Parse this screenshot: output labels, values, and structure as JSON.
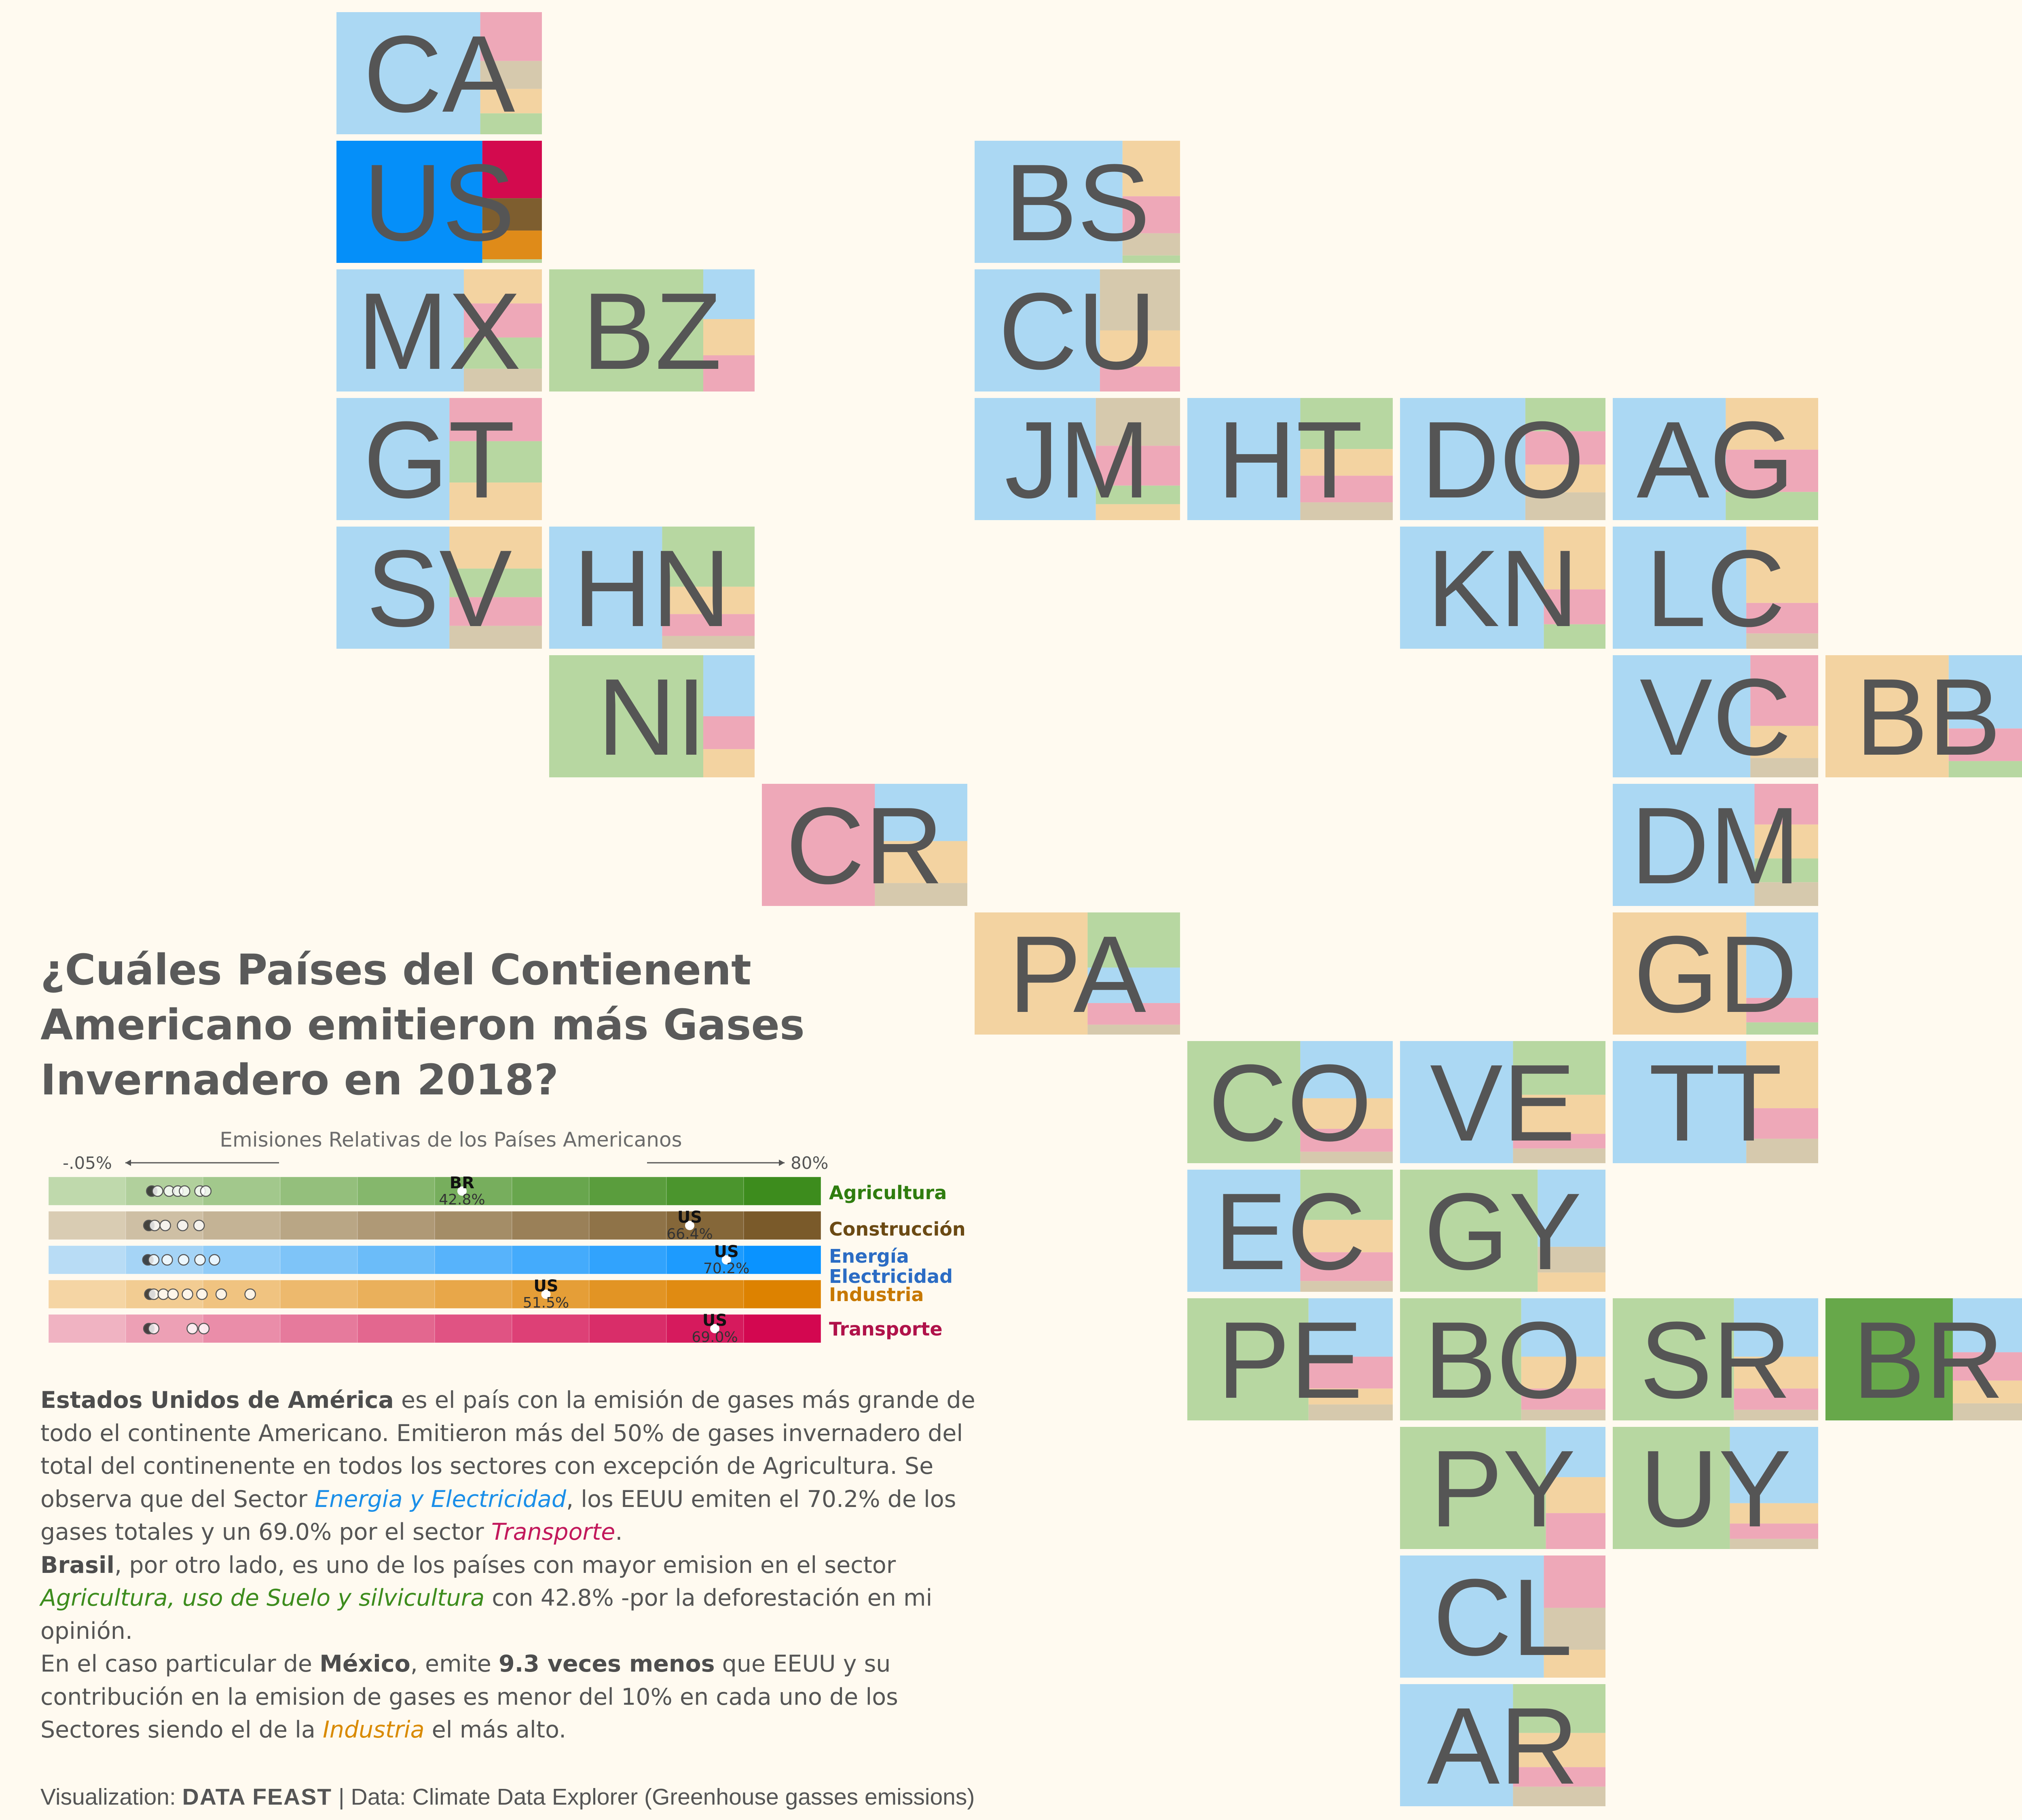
{
  "title": "¿Cuáles Países del Contienent Americano emitieron más Gases Invernadero en 2018?",
  "colors": {
    "agricultura": [
      "#bfd9ac",
      "#3d8c1d"
    ],
    "construccion": [
      "#d9ccb3",
      "#7a5a2a"
    ],
    "energia": [
      "#b8dcf5",
      "#0a93ff"
    ],
    "industria": [
      "#f5d5a4",
      "#dd8200"
    ],
    "transporte": [
      "#f0b3c2",
      "#d30750"
    ],
    "tile": {
      "agricultura": "#b7d7a1",
      "construccion": "#d6c9ad",
      "energia": "#abd8f3",
      "industria": "#f3d3a1",
      "transporte": "#eea8b8",
      "us_energia": "#058ff9",
      "us_transporte": "#d30a4e",
      "us_construccion": "#7e5e2f",
      "us_industria": "#df8b19",
      "br_agricultura": "#67a84a"
    }
  },
  "tiles": [
    {
      "code": "CA",
      "shares": {
        "energia": 0.65,
        "transporte": 0.14,
        "construccion": 0.08,
        "industria": 0.07,
        "agricultura": 0.06
      }
    },
    {
      "code": "US",
      "shares": {
        "energia": 0.66,
        "transporte": 0.16,
        "construccion": 0.09,
        "industria": 0.08,
        "agricultura": 0.01
      },
      "strong": [
        "energia",
        "transporte",
        "construccion",
        "industria"
      ]
    },
    {
      "code": "MX",
      "shares": {
        "energia": 0.57,
        "industria": 0.12,
        "transporte": 0.12,
        "agricultura": 0.11,
        "construccion": 0.08
      }
    },
    {
      "code": "BZ",
      "shares": {
        "agricultura": 0.73,
        "energia": 0.11,
        "industria": 0.08,
        "transporte": 0.08
      }
    },
    {
      "code": "GT",
      "shares": {
        "energia": 0.35,
        "agricultura": 0.22,
        "industria": 0.2,
        "transporte": 0.23
      }
    },
    {
      "code": "SV",
      "shares": {
        "energia": 0.36,
        "industria": 0.22,
        "agricultura": 0.15,
        "transporte": 0.15,
        "construccion": 0.12
      }
    },
    {
      "code": "HN",
      "shares": {
        "energia": 0.33,
        "agricultura": 0.33,
        "industria": 0.15,
        "transporte": 0.12,
        "construccion": 0.07
      }
    },
    {
      "code": "NI",
      "shares": {
        "agricultura": 0.74,
        "energia": 0.13,
        "industria": 0.06,
        "transporte": 0.07
      }
    },
    {
      "code": "CR",
      "shares": {
        "energia": 0.3,
        "transporte": 0.36,
        "industria": 0.22,
        "construccion": 0.12
      }
    },
    {
      "code": "BS",
      "shares": {
        "energia": 0.67,
        "industria": 0.15,
        "transporte": 0.1,
        "construccion": 0.06,
        "agricultura": 0.02
      }
    },
    {
      "code": "CU",
      "shares": {
        "energia": 0.56,
        "industria": 0.13,
        "construccion": 0.22,
        "transporte": 0.09
      }
    },
    {
      "code": "JM",
      "shares": {
        "energia": 0.54,
        "construccion": 0.18,
        "transporte": 0.15,
        "agricultura": 0.07,
        "industria": 0.06
      }
    },
    {
      "code": "HT",
      "shares": {
        "energia": 0.45,
        "agricultura": 0.23,
        "industria": 0.12,
        "transporte": 0.12,
        "construccion": 0.08
      }
    },
    {
      "code": "DO",
      "shares": {
        "energia": 0.56,
        "industria": 0.1,
        "agricultura": 0.12,
        "transporte": 0.12,
        "construccion": 0.1
      }
    },
    {
      "code": "AG",
      "shares": {
        "energia": 0.48,
        "industria": 0.22,
        "transporte": 0.18,
        "agricultura": 0.12
      }
    },
    {
      "code": "KN",
      "shares": {
        "energia": 0.65,
        "industria": 0.18,
        "transporte": 0.1,
        "agricultura": 0.07
      }
    },
    {
      "code": "LC",
      "shares": {
        "energia": 0.6,
        "industria": 0.25,
        "transporte": 0.1,
        "construccion": 0.05
      }
    },
    {
      "code": "VC",
      "shares": {
        "energia": 0.62,
        "transporte": 0.22,
        "industria": 0.1,
        "construccion": 0.06
      }
    },
    {
      "code": "BB",
      "shares": {
        "industria": 0.55,
        "energia": 0.27,
        "transporte": 0.12,
        "agricultura": 0.06
      }
    },
    {
      "code": "DM",
      "shares": {
        "energia": 0.64,
        "transporte": 0.12,
        "industria": 0.1,
        "agricultura": 0.07,
        "construccion": 0.07
      }
    },
    {
      "code": "PA",
      "shares": {
        "industria": 0.38,
        "agricultura": 0.28,
        "energia": 0.18,
        "transporte": 0.11,
        "construccion": 0.05
      }
    },
    {
      "code": "GD",
      "shares": {
        "industria": 0.6,
        "energia": 0.28,
        "transporte": 0.08,
        "agricultura": 0.04
      }
    },
    {
      "code": "CO",
      "shares": {
        "agricultura": 0.36,
        "energia": 0.3,
        "industria": 0.16,
        "transporte": 0.12,
        "construccion": 0.06
      }
    },
    {
      "code": "VE",
      "shares": {
        "energia": 0.5,
        "agricultura": 0.22,
        "industria": 0.16,
        "construccion": 0.06,
        "transporte": 0.06
      }
    },
    {
      "code": "TT",
      "shares": {
        "energia": 0.6,
        "industria": 0.22,
        "transporte": 0.1,
        "construccion": 0.08
      }
    },
    {
      "code": "EC",
      "shares": {
        "energia": 0.32,
        "agricultura": 0.28,
        "industria": 0.18,
        "transporte": 0.16,
        "construccion": 0.06
      }
    },
    {
      "code": "GY",
      "shares": {
        "agricultura": 0.62,
        "energia": 0.24,
        "construccion": 0.08,
        "industria": 0.06
      }
    },
    {
      "code": "PE",
      "shares": {
        "agricultura": 0.54,
        "energia": 0.22,
        "transporte": 0.12,
        "construccion": 0.06,
        "industria": 0.06
      }
    },
    {
      "code": "BO",
      "shares": {
        "agricultura": 0.54,
        "energia": 0.22,
        "industria": 0.12,
        "transporte": 0.08,
        "construccion": 0.04
      }
    },
    {
      "code": "SR",
      "shares": {
        "agricultura": 0.54,
        "energia": 0.22,
        "industria": 0.12,
        "transporte": 0.08,
        "construccion": 0.04
      }
    },
    {
      "code": "BR",
      "shares": {
        "agricultura": 0.57,
        "energia": 0.19,
        "transporte": 0.1,
        "industria": 0.08,
        "construccion": 0.06
      },
      "strong": [
        "agricultura"
      ]
    },
    {
      "code": "PY",
      "shares": {
        "agricultura": 0.66,
        "industria": 0.1,
        "energia": 0.14,
        "transporte": 0.1
      }
    },
    {
      "code": "UY",
      "shares": {
        "agricultura": 0.52,
        "energia": 0.3,
        "industria": 0.08,
        "transporte": 0.06,
        "construccion": 0.04
      }
    },
    {
      "code": "CL",
      "shares": {
        "energia": 0.65,
        "transporte": 0.15,
        "construccion": 0.12,
        "industria": 0.08
      }
    },
    {
      "code": "AR",
      "shares": {
        "energia": 0.5,
        "agricultura": 0.2,
        "industria": 0.14,
        "construccion": 0.08,
        "transporte": 0.08
      }
    }
  ],
  "chart_data": {
    "type": "bar",
    "title": "Emisiones Relativas de los Países Americanos",
    "x_range_labels": [
      "-.05%",
      "80%"
    ],
    "xlim": [
      -0.05,
      80
    ],
    "categories": [
      "Agricultura",
      "Construcción",
      "Energía Electricidad",
      "Industria",
      "Transporte"
    ],
    "series": [
      {
        "name": "Agricultura",
        "max_country": "BR",
        "max_value": 42.8,
        "max_label": "42.8%",
        "dots": [
          0.8,
          1.4,
          2.6,
          3.5,
          4.2,
          5.8,
          6.4
        ]
      },
      {
        "name": "Construcción",
        "max_country": "US",
        "max_value": 66.4,
        "max_label": "66.4%",
        "dots": [
          0.5,
          1.1,
          2.2,
          4.0,
          5.7
        ]
      },
      {
        "name": "Energía Electricidad",
        "max_country": "US",
        "max_value": 70.2,
        "max_label": "70.2%",
        "dots": [
          0.4,
          1.0,
          2.4,
          4.1,
          5.8,
          7.3
        ]
      },
      {
        "name": "Industria",
        "max_country": "US",
        "max_value": 51.5,
        "max_label": "51.5%",
        "dots": [
          0.6,
          1.0,
          2.0,
          3.0,
          4.5,
          6.0,
          8.0,
          11.0
        ]
      },
      {
        "name": "Transporte",
        "max_country": "US",
        "max_value": 69.0,
        "max_label": "69.0%",
        "dots": [
          0.5,
          1.0,
          5.0,
          6.2
        ]
      }
    ]
  },
  "narrative": {
    "p1_b1": "Estados Unidos de América",
    "p1_t1": " es el país con la emisión de gases más grande de todo el continente Americano. Emitieron más del 50% de gases invernadero del total del continenente en todos los sectores con excepción de Agricultura. Se observa que del Sector ",
    "p1_h1": "Energia y Electricidad",
    "p1_t2": ", los EEUU emiten el 70.2% de los gases totales y un 69.0% por el sector ",
    "p1_h2": "Transporte",
    "p1_t3": ".",
    "p2_b1": "Brasil",
    "p2_t1": ", por otro lado, es uno de los países con mayor emision en el sector ",
    "p2_h1": "Agricultura, uso de Suelo y silvicultura",
    "p2_t2": " con 42.8% -por la deforestación en mi opinión.",
    "p3_t1": "En el caso particular de ",
    "p3_b1": "México",
    "p3_t2": ", emite ",
    "p3_b2": "9.3 veces menos",
    "p3_t3": " que EEUU y su contribución en la emision de gases es menor del 10% en cada uno de los Sectores siendo el de la ",
    "p3_h1": "Industria",
    "p3_t4": " el más alto."
  },
  "caption": {
    "prefix": "Visualization: ",
    "brand": "DATA FEAST",
    "suffix": " | Data: Climate Data Explorer (Greenhouse gasses emissions)"
  }
}
